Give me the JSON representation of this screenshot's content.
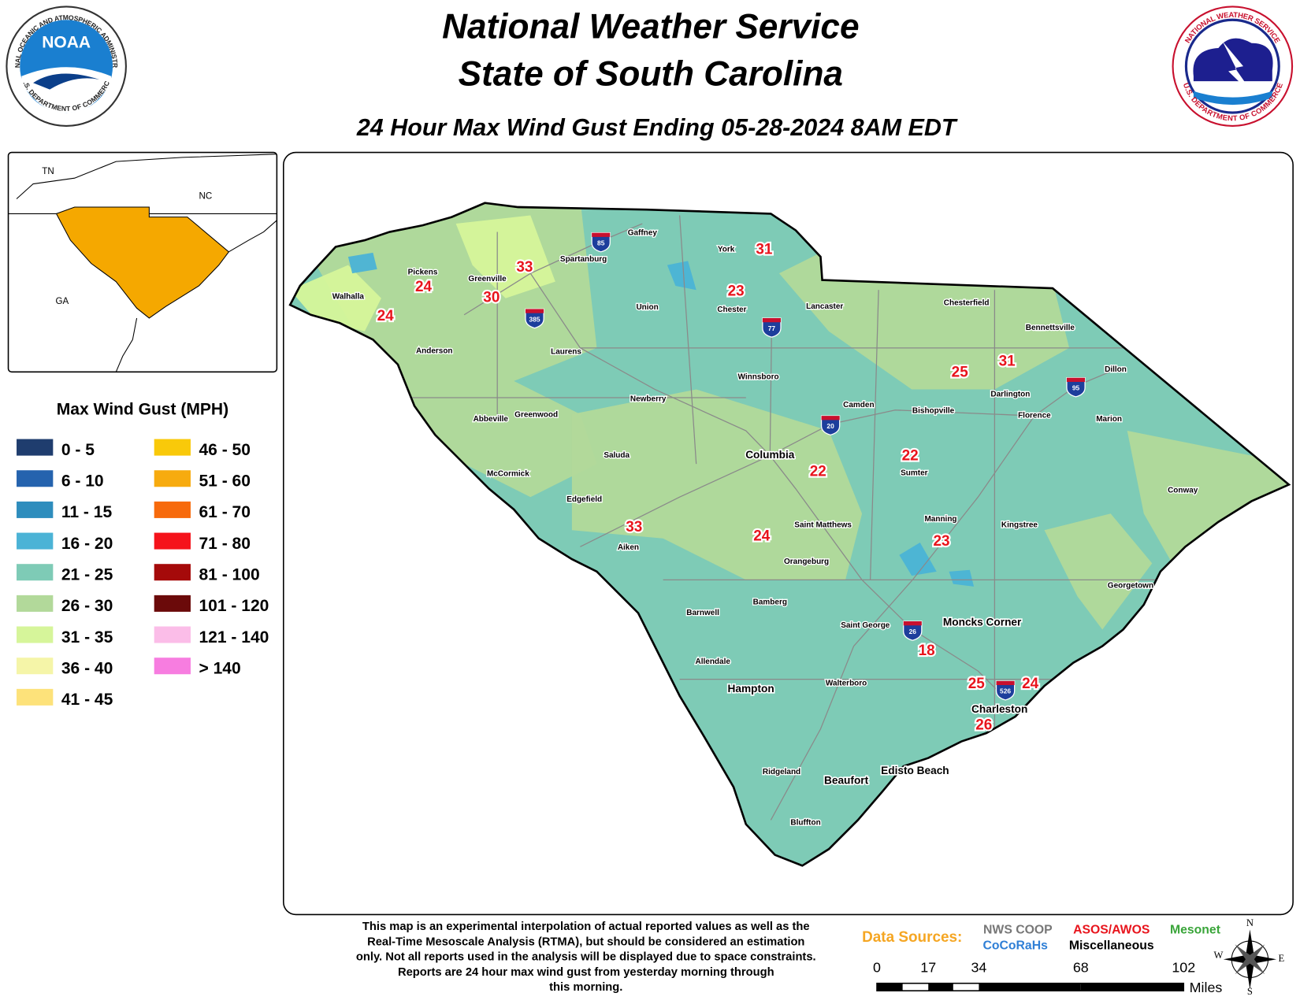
{
  "header": {
    "title": "National Weather Service",
    "subtitle": "State of South Carolina",
    "product": "24 Hour Max Wind Gust Ending 05-28-2024 8AM EDT"
  },
  "logos": {
    "noaa": {
      "name": "NOAA",
      "ring_top": "NATIONAL OCEANIC AND ATMOSPHERIC ADMINISTRATION",
      "ring_bottom": "U.S. DEPARTMENT OF COMMERCE"
    },
    "nws": {
      "ring_top": "NATIONAL WEATHER SERVICE",
      "ring_bottom": "U.S. DEPARTMENT OF COMMERCE"
    }
  },
  "inset": {
    "labels": [
      "TN",
      "NC",
      "GA"
    ]
  },
  "legend": {
    "title": "Max Wind Gust (MPH)",
    "items": [
      {
        "label": "0 - 5",
        "color": "#1f3d6e"
      },
      {
        "label": "6 - 10",
        "color": "#2563ae"
      },
      {
        "label": "11 - 15",
        "color": "#2e8dbd"
      },
      {
        "label": "16 - 20",
        "color": "#4bb3d6"
      },
      {
        "label": "21 - 25",
        "color": "#7ecbb6"
      },
      {
        "label": "26 - 30",
        "color": "#b2d99a"
      },
      {
        "label": "31 - 35",
        "color": "#d6f59a"
      },
      {
        "label": "36 - 40",
        "color": "#f5f5a8"
      },
      {
        "label": "41 - 45",
        "color": "#fde27a"
      },
      {
        "label": "46 - 50",
        "color": "#f9c90a"
      },
      {
        "label": "51 - 60",
        "color": "#f7ab0f"
      },
      {
        "label": "61 - 70",
        "color": "#f76a0c"
      },
      {
        "label": "71 - 80",
        "color": "#f5131b"
      },
      {
        "label": "81 - 100",
        "color": "#a50a0a"
      },
      {
        "label": "101 - 120",
        "color": "#6b0a0a"
      },
      {
        "label": "121 - 140",
        "color": "#fbbde8"
      },
      {
        "label": "> 140",
        "color": "#f77de0"
      }
    ]
  },
  "stations": [
    31,
    33,
    24,
    30,
    23,
    24,
    31,
    25,
    22,
    22,
    33,
    24,
    23,
    18,
    25,
    24,
    26
  ],
  "cities": [
    "Gaffney",
    "York",
    "Spartanburg",
    "Pickens",
    "Greenville",
    "Walhalla",
    "Union",
    "Chester",
    "Lancaster",
    "Chesterfield",
    "Bennettsville",
    "Anderson",
    "Laurens",
    "Winnsboro",
    "Dillon",
    "Darlington",
    "Newberry",
    "Camden",
    "Bishopville",
    "Florence",
    "Abbeville",
    "Greenwood",
    "Marion",
    "Saluda",
    "Sumter",
    "McCormick",
    "Conway",
    "Edgefield",
    "Saint Matthews",
    "Manning",
    "Kingstree",
    "Aiken",
    "Orangeburg",
    "Georgetown",
    "Bamberg",
    "Barnwell",
    "Saint George",
    "Allendale",
    "Walterboro",
    "Ridgeland",
    "Bluffton"
  ],
  "major_cities": [
    "Columbia",
    "Moncks Corner",
    "Hampton",
    "Charleston",
    "Beaufort",
    "Edisto Beach"
  ],
  "interstates": [
    "85",
    "385",
    "77",
    "20",
    "95",
    "26",
    "526"
  ],
  "footnote": [
    "This map is an experimental interpolation of actual reported values as well as the",
    "Real-Time Mesoscale Analysis (RTMA), but should be considered an estimation",
    "only. Not all reports used in the analysis will be displayed due to space constraints.",
    "Reports are 24 hour max wind gust from yesterday morning through",
    "this morning."
  ],
  "data_sources": {
    "title": "Data Sources:",
    "sources": [
      {
        "name": "NWS COOP",
        "color": "#777777"
      },
      {
        "name": "ASOS/AWOS",
        "color": "#e8141c"
      },
      {
        "name": "Mesonet",
        "color": "#3aa53a"
      },
      {
        "name": "CoCoRaHs",
        "color": "#2f7fd6"
      },
      {
        "name": "Miscellaneous",
        "color": "#000000"
      }
    ]
  },
  "scale_bar": {
    "ticks": [
      "0",
      "17",
      "34",
      "68",
      "102"
    ],
    "unit": "Miles"
  },
  "compass": {
    "n": "N",
    "s": "S",
    "e": "E",
    "w": "W"
  }
}
